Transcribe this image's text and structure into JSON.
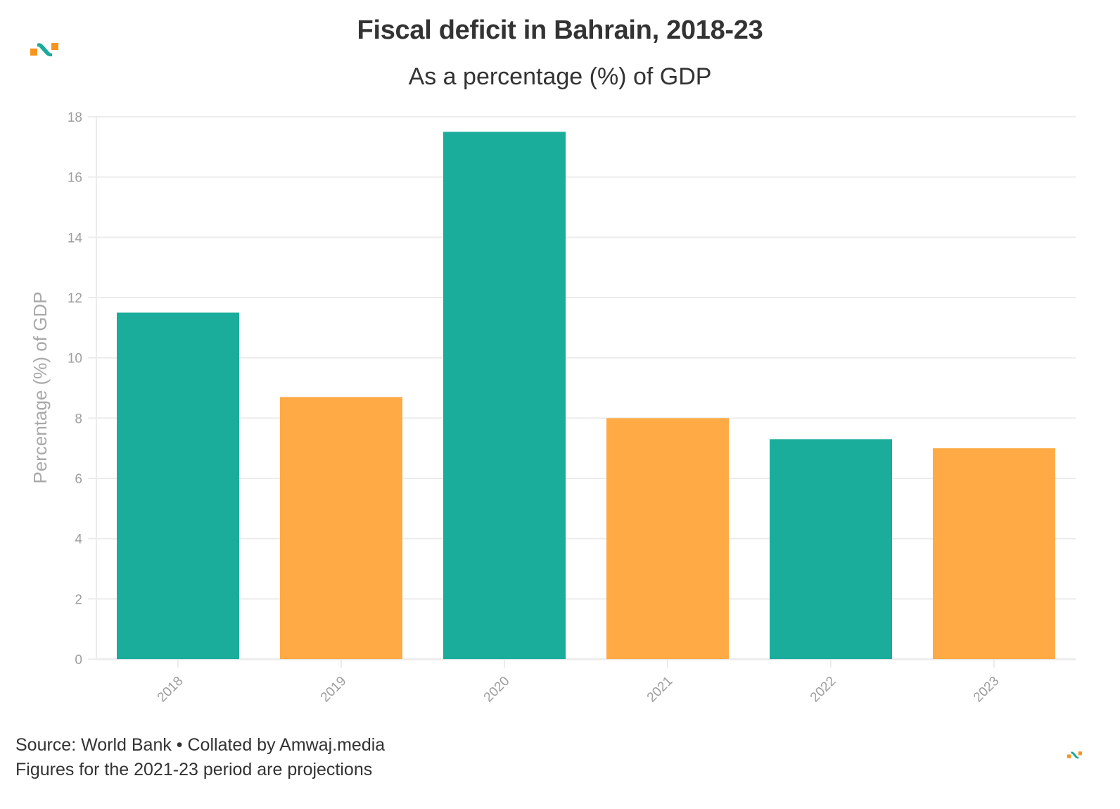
{
  "header": {
    "title": "Fiscal deficit in Bahrain, 2018-23",
    "subtitle": "As a percentage (%) of GDP"
  },
  "footer": {
    "source": "Source: World Bank • Collated by Amwaj.media",
    "note": "Figures for the 2021-23 period are projections"
  },
  "logo": {
    "name": "amwaj-logo",
    "colors": {
      "primary": "#1aaa9a",
      "accent": "#f7941d"
    }
  },
  "chart_data": {
    "type": "bar",
    "title": "Fiscal deficit in Bahrain, 2018-23",
    "subtitle": "As a percentage (%) of GDP",
    "xlabel": "",
    "ylabel": "Percentage (%) of GDP",
    "categories": [
      "2018",
      "2019",
      "2020",
      "2021",
      "2022",
      "2023"
    ],
    "values": [
      11.5,
      8.7,
      17.5,
      8.0,
      7.3,
      7.0
    ],
    "bar_colors": [
      "#1aad9c",
      "#ffaa45",
      "#1aad9c",
      "#ffaa45",
      "#1aad9c",
      "#ffaa45"
    ],
    "ylim": [
      0,
      18
    ],
    "yticks": [
      0,
      2,
      4,
      6,
      8,
      10,
      12,
      14,
      16,
      18
    ],
    "grid": true,
    "legend": "none",
    "x_tick_rotation": "-45deg"
  }
}
